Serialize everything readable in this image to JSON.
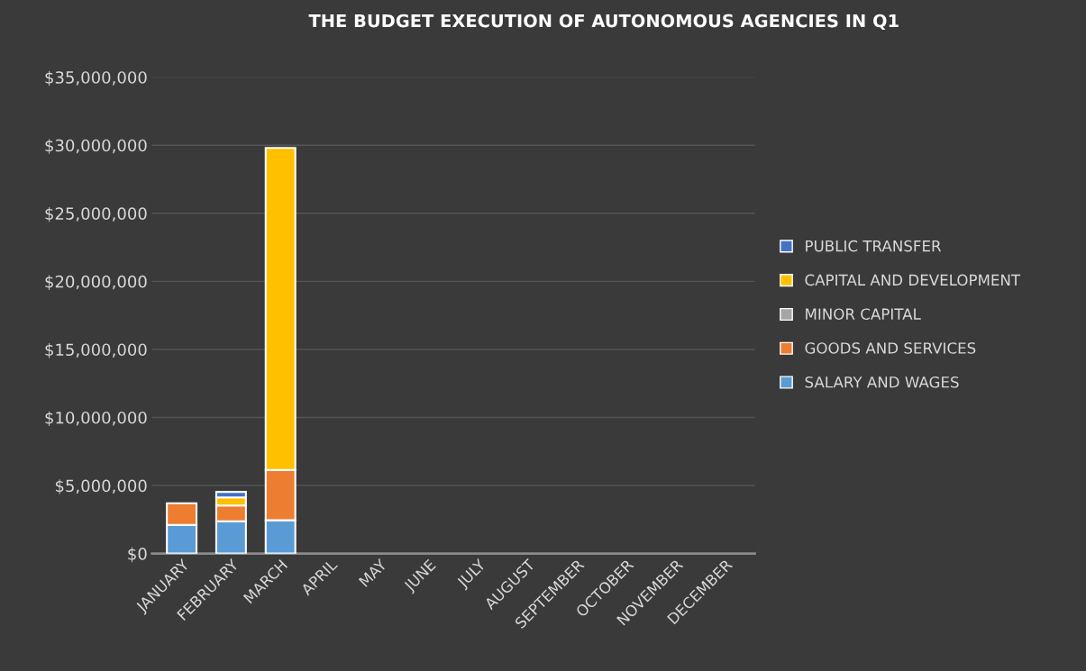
{
  "chart_data": {
    "type": "bar",
    "title": "THE BUDGET EXECUTION OF AUTONOMOUS AGENCIES IN Q1",
    "categories": [
      "JANUARY",
      "FEBRUARY",
      "MARCH",
      "APRIL",
      "MAY",
      "JUNE",
      "JULY",
      "AUGUST",
      "SEPTEMBER",
      "OCTOBER",
      "NOVEMBER",
      "DECEMBER"
    ],
    "stacked": true,
    "series": [
      {
        "name": "SALARY AND WAGES",
        "color": "#5b9bd5",
        "values": [
          2100000,
          2370000,
          2450000,
          null,
          null,
          null,
          null,
          null,
          null,
          null,
          null,
          null
        ]
      },
      {
        "name": "GOODS AND SERVICES",
        "color": "#ed7d31",
        "values": [
          1600000,
          1160000,
          3700000,
          null,
          null,
          null,
          null,
          null,
          null,
          null,
          null,
          null
        ]
      },
      {
        "name": "MINOR CAPITAL",
        "color": "#a5a5a5",
        "values": [
          null,
          null,
          null,
          null,
          null,
          null,
          null,
          null,
          null,
          null,
          null,
          null
        ]
      },
      {
        "name": "CAPITAL AND DEVELOPMENT",
        "color": "#ffc000",
        "values": [
          null,
          600000,
          23650000,
          null,
          null,
          null,
          null,
          null,
          null,
          null,
          null,
          null
        ]
      },
      {
        "name": "PUBLIC TRANSFER",
        "color": "#4472c4",
        "values": [
          null,
          400000,
          null,
          null,
          null,
          null,
          null,
          null,
          null,
          null,
          null,
          null
        ]
      }
    ],
    "ylim": [
      0,
      35000000
    ],
    "yticks": [
      {
        "value": 0,
        "label": "$0"
      },
      {
        "value": 5000000,
        "label": "$5,000,000"
      },
      {
        "value": 10000000,
        "label": "$10,000,000"
      },
      {
        "value": 15000000,
        "label": "$15,000,000"
      },
      {
        "value": 20000000,
        "label": "$20,000,000"
      },
      {
        "value": 25000000,
        "label": "$25,000,000"
      },
      {
        "value": 30000000,
        "label": "$30,000,000"
      },
      {
        "value": 35000000,
        "label": "$35,000,000"
      }
    ],
    "grid": "y",
    "legend": "right"
  }
}
